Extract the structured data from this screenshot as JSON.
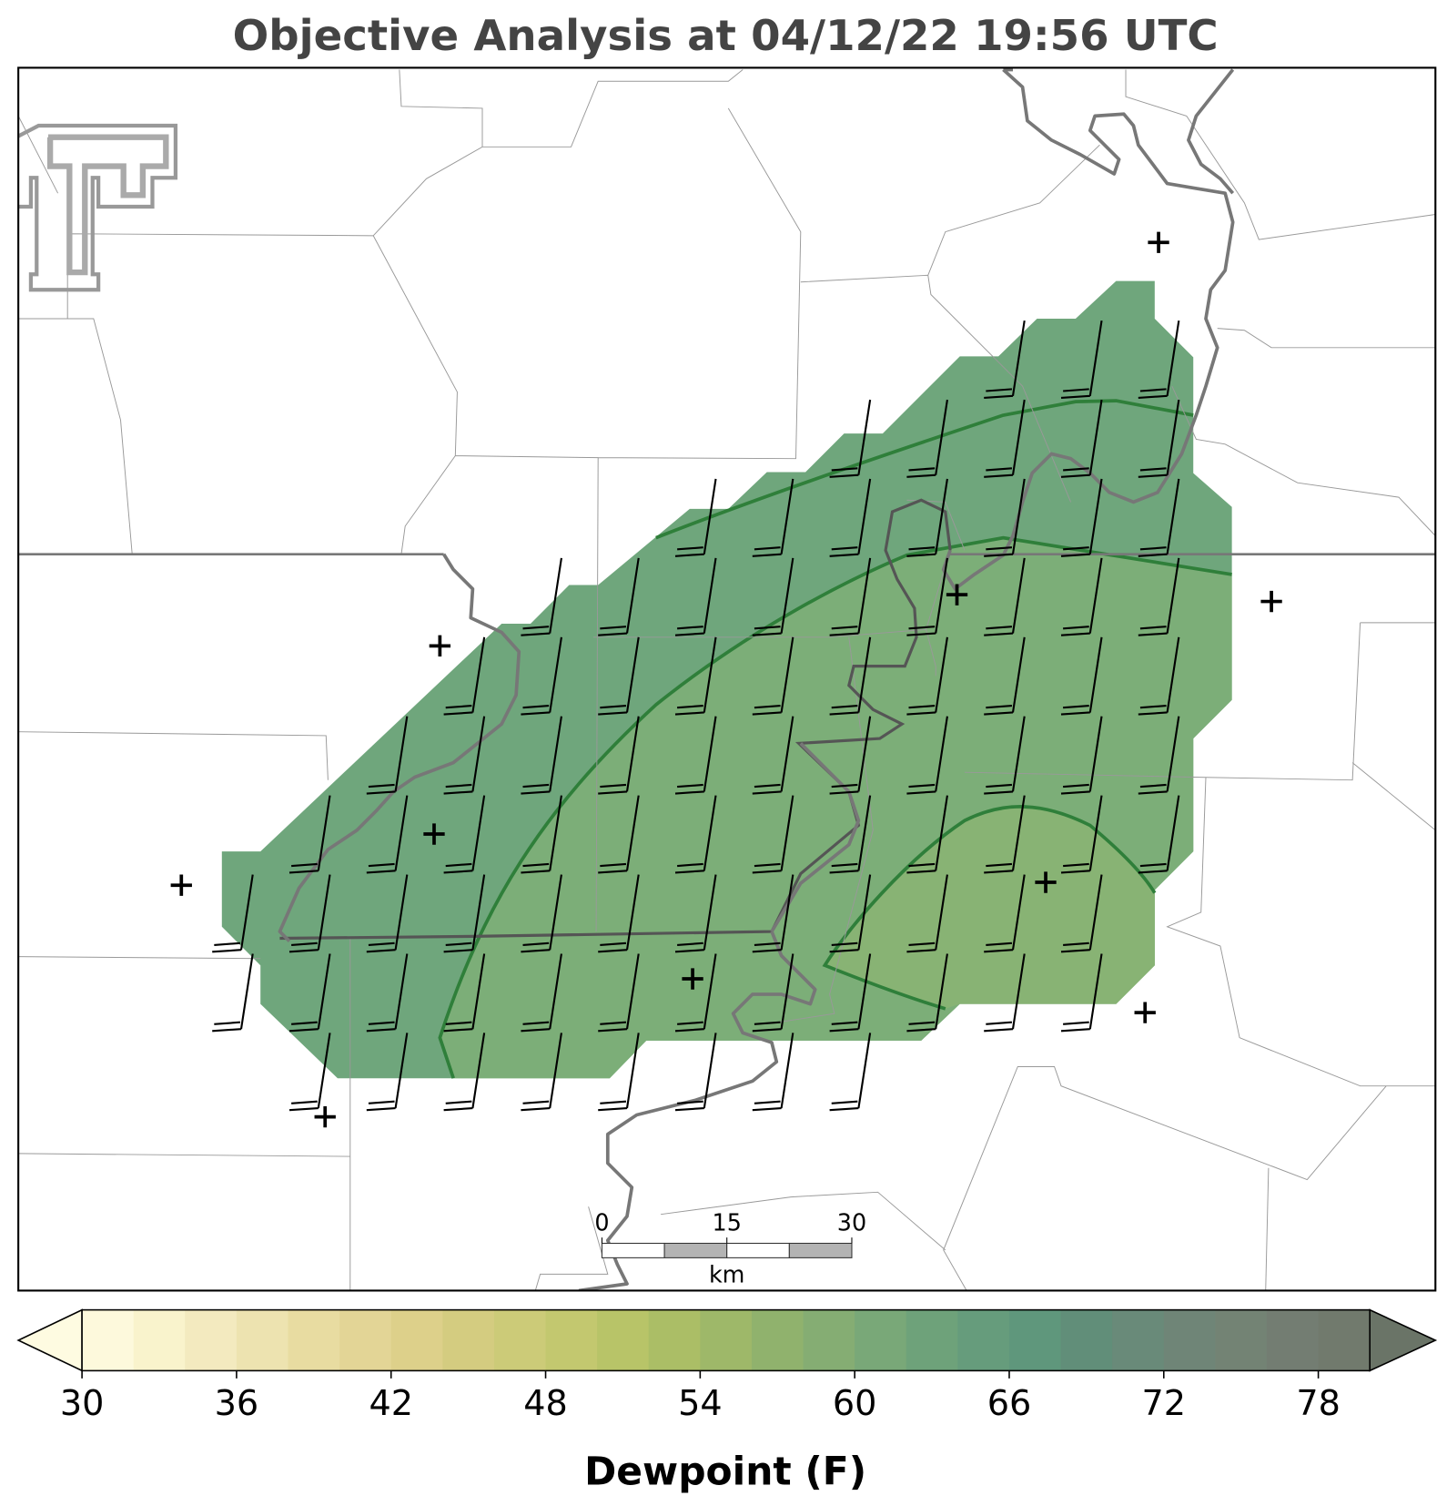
{
  "title": "Objective Analysis at 04/12/22 19:56 UTC",
  "colorbar": {
    "label": "Dewpoint (F)",
    "lim": [
      30,
      80
    ],
    "ticks": [
      30,
      36,
      42,
      48,
      54,
      60,
      66,
      72,
      78
    ],
    "levels": [
      30,
      32,
      34,
      36,
      38,
      40,
      42,
      44,
      46,
      48,
      50,
      52,
      54,
      56,
      58,
      60,
      62,
      64,
      66,
      68,
      70,
      72,
      74,
      76,
      78,
      80
    ],
    "colors": [
      "#fdf9dc",
      "#f9f3cc",
      "#f3eabf",
      "#ede3b0",
      "#e8dca1",
      "#e3d596",
      "#ddd08a",
      "#d4cc80",
      "#cccb78",
      "#c3c86f",
      "#b8c468",
      "#abbe66",
      "#9eb869",
      "#90b26d",
      "#85ad73",
      "#79a878",
      "#6ea27a",
      "#669c7c",
      "#5f977c",
      "#618e79",
      "#698a79",
      "#6f8577",
      "#738374",
      "#737d72",
      "#717a6d"
    ],
    "extend_colors": [
      "#fefbe1",
      "#6a7467"
    ]
  },
  "scale_bar": {
    "ticks": [
      0,
      15,
      30
    ],
    "unit": "km"
  }
}
